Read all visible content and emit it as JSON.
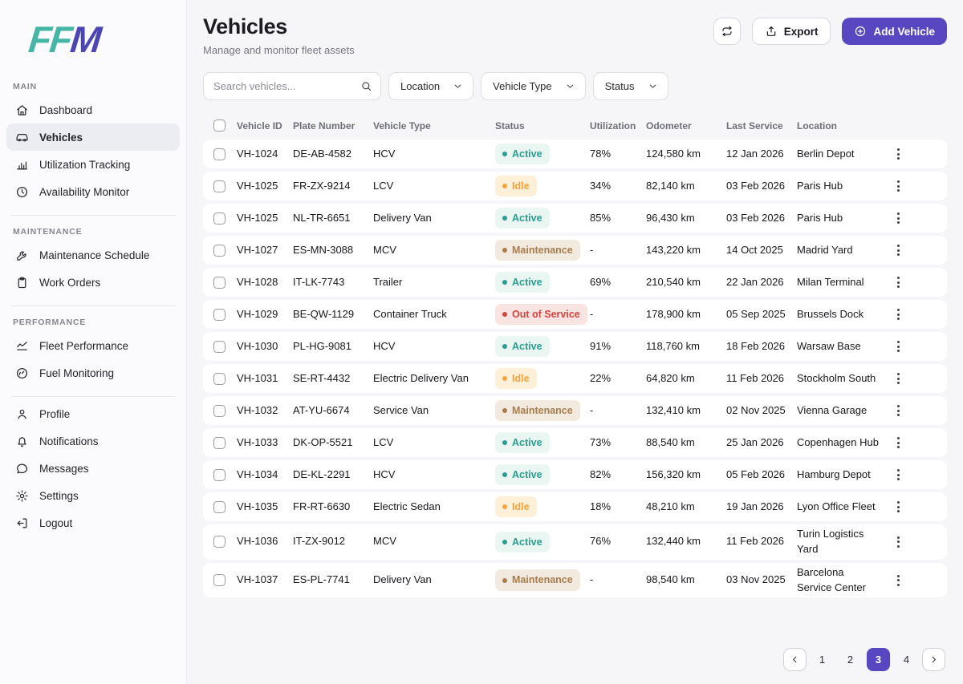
{
  "colors": {
    "accent": "#5748c2",
    "logo_teal": "#45b5a6",
    "logo_purple": "#4c46b4",
    "active_text": "#2a9d8f",
    "active_bg": "#e9f6f1",
    "idle_text": "#efa53c",
    "idle_bg": "#fcf0d8",
    "maintenance_text": "#a87c4c",
    "maintenance_bg": "#f2eadf",
    "out_of_service_text": "#d5453e",
    "out_of_service_bg": "#f9e4e2"
  },
  "sidebar": {
    "logo": {
      "letters": [
        "F",
        "F",
        "M"
      ]
    },
    "sections": [
      {
        "label": "MAIN",
        "items": [
          {
            "label": "Dashboard",
            "icon": "home-icon",
            "active": false
          },
          {
            "label": "Vehicles",
            "icon": "car-icon",
            "active": true
          },
          {
            "label": "Utilization Tracking",
            "icon": "bar-chart-icon",
            "active": false
          },
          {
            "label": "Availability Monitor",
            "icon": "clock-icon",
            "active": false
          }
        ]
      },
      {
        "label": "MAINTENANCE",
        "items": [
          {
            "label": "Maintenance Schedule",
            "icon": "wrench-icon",
            "active": false
          },
          {
            "label": "Work Orders",
            "icon": "clipboard-icon",
            "active": false
          }
        ]
      },
      {
        "label": "PERFORMANCE",
        "items": [
          {
            "label": "Fleet Performance",
            "icon": "trend-icon",
            "active": false
          },
          {
            "label": "Fuel Monitoring",
            "icon": "gauge-icon",
            "active": false
          }
        ]
      },
      {
        "label": "",
        "items": [
          {
            "label": "Profile",
            "icon": "user-icon",
            "active": false
          },
          {
            "label": "Notifications",
            "icon": "bell-icon",
            "active": false
          },
          {
            "label": "Messages",
            "icon": "message-icon",
            "active": false
          },
          {
            "label": "Settings",
            "icon": "gear-icon",
            "active": false
          },
          {
            "label": "Logout",
            "icon": "logout-icon",
            "active": false
          }
        ]
      }
    ]
  },
  "header": {
    "title": "Vehicles",
    "subtitle": "Manage and monitor fleet assets",
    "refresh_button_icon": "repeat-icon",
    "export_label": "Export",
    "export_icon": "export-icon",
    "add_vehicle_label": "Add Vehicle",
    "add_vehicle_icon": "plus-circle-icon"
  },
  "filters": {
    "search_placeholder": "Search vehicles...",
    "search_icon": "search-icon",
    "dropdowns": [
      {
        "label": "Location",
        "icon": "chevron-down-icon"
      },
      {
        "label": "Vehicle Type",
        "icon": "chevron-down-icon"
      },
      {
        "label": "Status",
        "icon": "chevron-down-icon"
      }
    ]
  },
  "table": {
    "columns": [
      "Vehicle ID",
      "Plate Number",
      "Vehicle Type",
      "Status",
      "Utilization",
      "Odometer",
      "Last Service",
      "Location"
    ],
    "rows": [
      {
        "id": "VH-1024",
        "plate": "DE-AB-4582",
        "type": "HCV",
        "status": "Active",
        "status_key": "active",
        "utilization": "78%",
        "odometer": "124,580 km",
        "last_service": "12 Jan 2026",
        "location": "Berlin Depot"
      },
      {
        "id": "VH-1025",
        "plate": "FR-ZX-9214",
        "type": "LCV",
        "status": "Idle",
        "status_key": "idle",
        "utilization": "34%",
        "odometer": "82,140 km",
        "last_service": "03 Feb 2026",
        "location": "Paris Hub"
      },
      {
        "id": "VH-1025",
        "plate": "NL-TR-6651",
        "type": "Delivery Van",
        "status": "Active",
        "status_key": "active",
        "utilization": "85%",
        "odometer": "96,430 km",
        "last_service": "03 Feb 2026",
        "location": "Paris Hub"
      },
      {
        "id": "VH-1027",
        "plate": "ES-MN-3088",
        "type": "MCV",
        "status": "Maintenance",
        "status_key": "maintenance",
        "utilization": "-",
        "odometer": "143,220 km",
        "last_service": "14 Oct 2025",
        "location": "Madrid Yard"
      },
      {
        "id": "VH-1028",
        "plate": "IT-LK-7743",
        "type": "Trailer",
        "status": "Active",
        "status_key": "active",
        "utilization": "69%",
        "odometer": "210,540 km",
        "last_service": "22 Jan 2026",
        "location": "Milan Terminal"
      },
      {
        "id": "VH-1029",
        "plate": "BE-QW-1129",
        "type": "Container Truck",
        "status": "Out of Service",
        "status_key": "out_of_service",
        "utilization": "-",
        "odometer": "178,900 km",
        "last_service": "05 Sep 2025",
        "location": "Brussels Dock"
      },
      {
        "id": "VH-1030",
        "plate": "PL-HG-9081",
        "type": "HCV",
        "status": "Active",
        "status_key": "active",
        "utilization": "91%",
        "odometer": "118,760 km",
        "last_service": "18 Feb 2026",
        "location": "Warsaw Base"
      },
      {
        "id": "VH-1031",
        "plate": "SE-RT-4432",
        "type": "Electric Delivery Van",
        "status": "Idle",
        "status_key": "idle",
        "utilization": "22%",
        "odometer": "64,820 km",
        "last_service": "11 Feb 2026",
        "location": "Stockholm South"
      },
      {
        "id": "VH-1032",
        "plate": "AT-YU-6674",
        "type": "Service Van",
        "status": "Maintenance",
        "status_key": "maintenance",
        "utilization": "-",
        "odometer": "132,410 km",
        "last_service": "02 Nov 2025",
        "location": "Vienna Garage"
      },
      {
        "id": "VH-1033",
        "plate": "DK-OP-5521",
        "type": "LCV",
        "status": "Active",
        "status_key": "active",
        "utilization": "73%",
        "odometer": "88,540 km",
        "last_service": "25 Jan 2026",
        "location": "Copenhagen Hub"
      },
      {
        "id": "VH-1034",
        "plate": "DE-KL-2291",
        "type": "HCV",
        "status": "Active",
        "status_key": "active",
        "utilization": "82%",
        "odometer": "156,320 km",
        "last_service": "05 Feb 2026",
        "location": "Hamburg Depot"
      },
      {
        "id": "VH-1035",
        "plate": "FR-RT-6630",
        "type": "Electric Sedan",
        "status": "Idle",
        "status_key": "idle",
        "utilization": "18%",
        "odometer": "48,210 km",
        "last_service": "19 Jan 2026",
        "location": "Lyon Office Fleet"
      },
      {
        "id": "VH-1036",
        "plate": "IT-ZX-9012",
        "type": "MCV",
        "status": "Active",
        "status_key": "active",
        "utilization": "76%",
        "odometer": "132,440 km",
        "last_service": "11 Feb 2026",
        "location": "Turin Logistics Yard"
      },
      {
        "id": "VH-1037",
        "plate": "ES-PL-7741",
        "type": "Delivery Van",
        "status": "Maintenance",
        "status_key": "maintenance",
        "utilization": "-",
        "odometer": "98,540 km",
        "last_service": "03 Nov 2025",
        "location": "Barcelona Service Center"
      }
    ],
    "row_action_icon": "kebab-menu-icon"
  },
  "pagination": {
    "prev_icon": "chevron-left-icon",
    "pages": [
      "1",
      "2",
      "3",
      "4"
    ],
    "active_page": "3",
    "next_icon": "chevron-right-icon"
  }
}
